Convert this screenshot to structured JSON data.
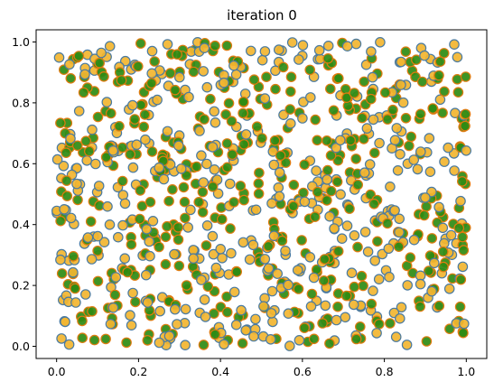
{
  "chart_data": {
    "type": "scatter",
    "title": "iteration 0",
    "xlabel": "",
    "ylabel": "",
    "xlim": [
      -0.05,
      1.05
    ],
    "ylim": [
      -0.04,
      1.04
    ],
    "x_ticks": [
      0.0,
      0.2,
      0.4,
      0.6,
      0.8,
      1.0
    ],
    "x_tick_labels": [
      "0.0",
      "0.2",
      "0.4",
      "0.6",
      "0.8",
      "1.0"
    ],
    "y_ticks": [
      0.0,
      0.2,
      0.4,
      0.6,
      0.8,
      1.0
    ],
    "y_tick_labels": [
      "0.0",
      "0.2",
      "0.4",
      "0.6",
      "0.8",
      "1.0"
    ],
    "grid": false,
    "legend": "none",
    "colors": {
      "edge_blue": "#4a7aa0",
      "fill_orange": "#f2b530",
      "fill_green": "#2e8b12",
      "edge_orange": "#e07b10"
    },
    "point_count": 900,
    "series": [
      {
        "style": "orange fill, blue edge",
        "values_sample": [
          [
            0.0,
            0.93
          ],
          [
            0.07,
            0.94
          ],
          [
            0.15,
            0.99
          ],
          [
            0.25,
            1.0
          ],
          [
            0.49,
            0.97
          ],
          [
            0.52,
            0.98
          ],
          [
            0.91,
            1.0
          ],
          [
            0.3,
            0.6
          ],
          [
            0.62,
            0.45
          ],
          [
            0.8,
            0.32
          ],
          [
            0.98,
            0.18
          ],
          [
            0.45,
            0.02
          ]
        ]
      },
      {
        "style": "green fill, orange edge",
        "values_sample": [
          [
            0.01,
            0.04
          ],
          [
            0.08,
            0.01
          ],
          [
            0.19,
            0.05
          ],
          [
            0.38,
            0.01
          ],
          [
            0.55,
            0.12
          ],
          [
            0.7,
            0.28
          ],
          [
            0.85,
            0.52
          ],
          [
            0.1,
            0.4
          ],
          [
            0.33,
            0.78
          ],
          [
            0.66,
            0.88
          ],
          [
            0.93,
            0.67
          ],
          [
            0.99,
            0.28
          ]
        ]
      }
    ]
  }
}
